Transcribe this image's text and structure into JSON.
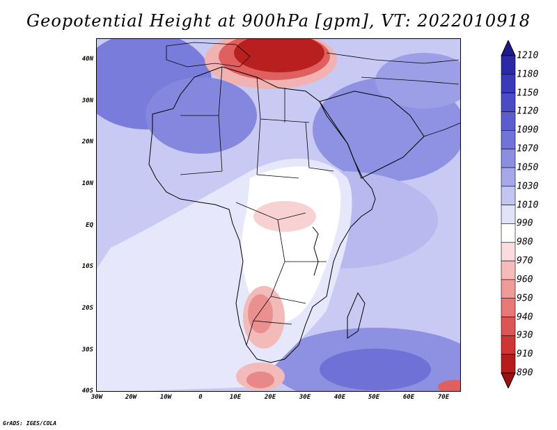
{
  "title": "Geopotential Height at 900hPa [gpm], VT: 2022010918",
  "credit": "GrADS: IGES/COLA",
  "lat_labels": [
    "40N",
    "30N",
    "20N",
    "10N",
    "EQ",
    "10S",
    "20S",
    "30S",
    "40S"
  ],
  "lon_labels": [
    "30W",
    "20W",
    "10W",
    "0",
    "10E",
    "20E",
    "30E",
    "40E",
    "50E",
    "60E",
    "70E"
  ],
  "colorbar": {
    "labels": [
      "1210",
      "1180",
      "1150",
      "1120",
      "1090",
      "1070",
      "1050",
      "1030",
      "1010",
      "990",
      "980",
      "970",
      "960",
      "950",
      "940",
      "930",
      "910",
      "890"
    ],
    "colors": [
      "#1f1a8c",
      "#2b2aa6",
      "#3a3ab8",
      "#4a4cc6",
      "#5c5ed0",
      "#7273d9",
      "#8c8ee2",
      "#a6a8ea",
      "#c4c6f2",
      "#e2e3f9",
      "#ffffff",
      "#fbdcdc",
      "#f6bcbc",
      "#f09a9a",
      "#e87777",
      "#de5454",
      "#d03434",
      "#b71c1c",
      "#9e1010"
    ]
  },
  "colors": {
    "land_neutral": "#ffffff",
    "ocean_base": "#c6c8f2",
    "high": "#6f72d8",
    "low": "#b82020"
  }
}
